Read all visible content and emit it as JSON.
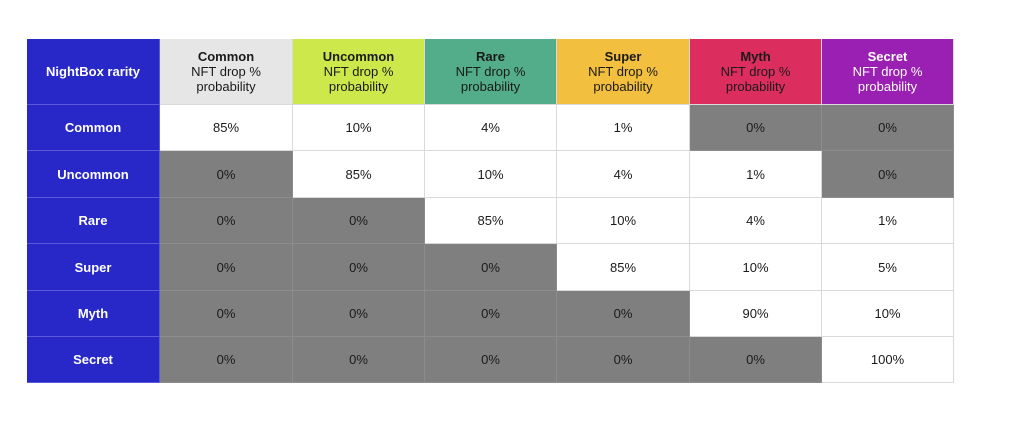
{
  "table": {
    "corner_label": "NightBox rarity",
    "columns": [
      {
        "title": "Common",
        "subtitle_line1": "NFT drop %",
        "subtitle_line2": "probability",
        "bg": "#e6e6e6",
        "fg": "#1a1a1a"
      },
      {
        "title": "Uncommon",
        "subtitle_line1": "NFT drop %",
        "subtitle_line2": "probability",
        "bg": "#cde84a",
        "fg": "#1a1a1a"
      },
      {
        "title": "Rare",
        "subtitle_line1": "NFT drop %",
        "subtitle_line2": "probability",
        "bg": "#53ad8a",
        "fg": "#1a1a1a"
      },
      {
        "title": "Super",
        "subtitle_line1": "NFT drop %",
        "subtitle_line2": "probability",
        "bg": "#f3bf3f",
        "fg": "#1a1a1a"
      },
      {
        "title": "Myth",
        "subtitle_line1": "NFT drop %",
        "subtitle_line2": "probability",
        "bg": "#dc2d5f",
        "fg": "#1a1a1a"
      },
      {
        "title": "Secret",
        "subtitle_line1": "NFT drop %",
        "subtitle_line2": "probability",
        "bg": "#9a1fb3",
        "fg": "#ffffff"
      }
    ],
    "rows": [
      {
        "label": "Common",
        "values": [
          "85%",
          "10%",
          "4%",
          "1%",
          "0%",
          "0%"
        ],
        "shaded": [
          false,
          false,
          false,
          false,
          true,
          true
        ]
      },
      {
        "label": "Uncommon",
        "values": [
          "0%",
          "85%",
          "10%",
          "4%",
          "1%",
          "0%"
        ],
        "shaded": [
          true,
          false,
          false,
          false,
          false,
          true
        ]
      },
      {
        "label": "Rare",
        "values": [
          "0%",
          "0%",
          "85%",
          "10%",
          "4%",
          "1%"
        ],
        "shaded": [
          true,
          true,
          false,
          false,
          false,
          false
        ]
      },
      {
        "label": "Super",
        "values": [
          "0%",
          "0%",
          "0%",
          "85%",
          "10%",
          "5%"
        ],
        "shaded": [
          true,
          true,
          true,
          false,
          false,
          false
        ]
      },
      {
        "label": "Myth",
        "values": [
          "0%",
          "0%",
          "0%",
          "0%",
          "90%",
          "10%"
        ],
        "shaded": [
          true,
          true,
          true,
          true,
          false,
          false
        ]
      },
      {
        "label": "Secret",
        "values": [
          "0%",
          "0%",
          "0%",
          "0%",
          "0%",
          "100%"
        ],
        "shaded": [
          true,
          true,
          true,
          true,
          true,
          false
        ]
      }
    ],
    "colors": {
      "row_header_bg": "#2828c8",
      "shaded_cell_bg": "#7f7f7f",
      "plain_cell_bg": "#ffffff"
    }
  }
}
